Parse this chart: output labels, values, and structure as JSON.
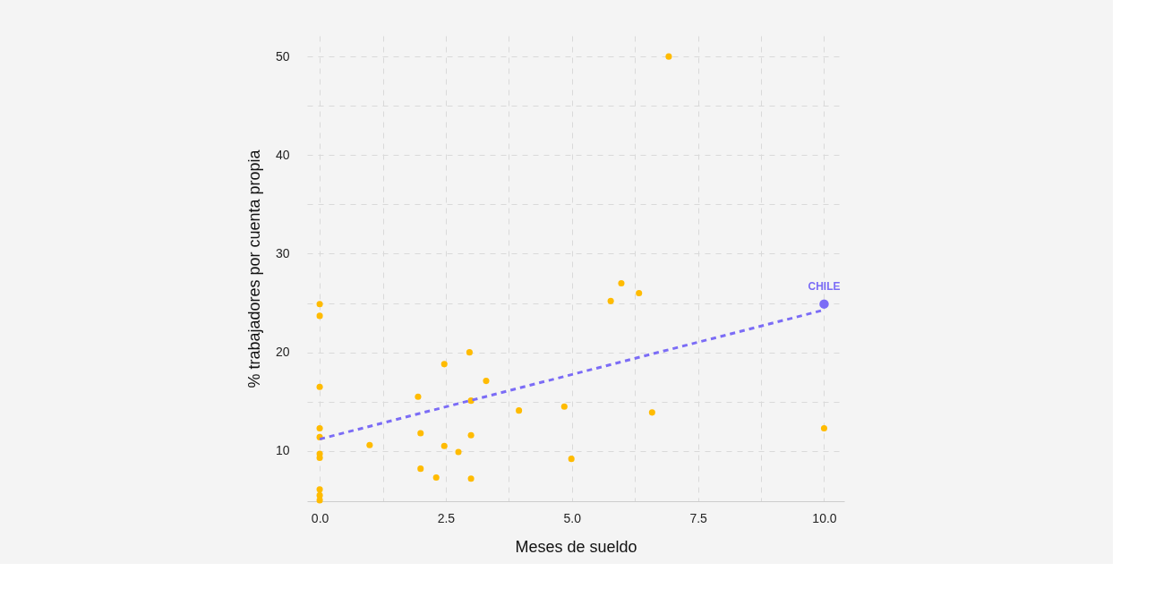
{
  "chart_data": {
    "type": "scatter",
    "xlabel": "Meses de sueldo",
    "ylabel": "% trabajadores por cuenta propia",
    "xlim": [
      -0.25,
      10.4
    ],
    "ylim": [
      4.9,
      52.1
    ],
    "xticks": [
      {
        "value": 0,
        "label": "0.0"
      },
      {
        "value": 1.25,
        "label": null
      },
      {
        "value": 2.5,
        "label": "2.5"
      },
      {
        "value": 3.75,
        "label": null
      },
      {
        "value": 5,
        "label": "5.0"
      },
      {
        "value": 6.25,
        "label": null
      },
      {
        "value": 7.5,
        "label": "7.5"
      },
      {
        "value": 8.75,
        "label": null
      },
      {
        "value": 10,
        "label": "10.0"
      }
    ],
    "yticks": [
      10,
      {
        "value": 15,
        "label": null
      },
      20,
      {
        "value": 25,
        "label": null
      },
      30,
      {
        "value": 35,
        "label": null
      },
      40,
      {
        "value": 45,
        "label": null
      },
      50
    ],
    "grid": true,
    "series": [
      {
        "color": "#ffbb00",
        "marker": "circle",
        "x": [
          0,
          0,
          0,
          0,
          0,
          0,
          0,
          0,
          0,
          0,
          0.99,
          1.95,
          2.0,
          2.0,
          2.31,
          2.47,
          2.47,
          2.75,
          2.97,
          3.0,
          3.0,
          3.0,
          3.3,
          3.95,
          4.85,
          4.99,
          5.77,
          5.98,
          6.33,
          6.59,
          6.92,
          10
        ],
        "values": [
          24.9,
          23.7,
          16.5,
          12.3,
          11.4,
          9.7,
          9.3,
          6.1,
          5.5,
          5.0,
          10.6,
          15.5,
          11.8,
          8.2,
          7.3,
          18.8,
          10.5,
          9.9,
          20.0,
          15.1,
          11.6,
          7.2,
          17.1,
          14.1,
          14.5,
          9.2,
          25.2,
          27.0,
          26.0,
          13.9,
          50.0,
          12.3
        ]
      },
      {
        "type": "line",
        "color": "#7b6cf6",
        "line_style": "dashed",
        "marker": "none",
        "x": [
          0,
          10
        ],
        "values": [
          11.2,
          24.3
        ]
      },
      {
        "type": "scatter",
        "name": "CHILE",
        "marker": "circle",
        "color": "#7b6cf6",
        "x": [
          10
        ],
        "values": [
          24.9
        ]
      }
    ]
  }
}
